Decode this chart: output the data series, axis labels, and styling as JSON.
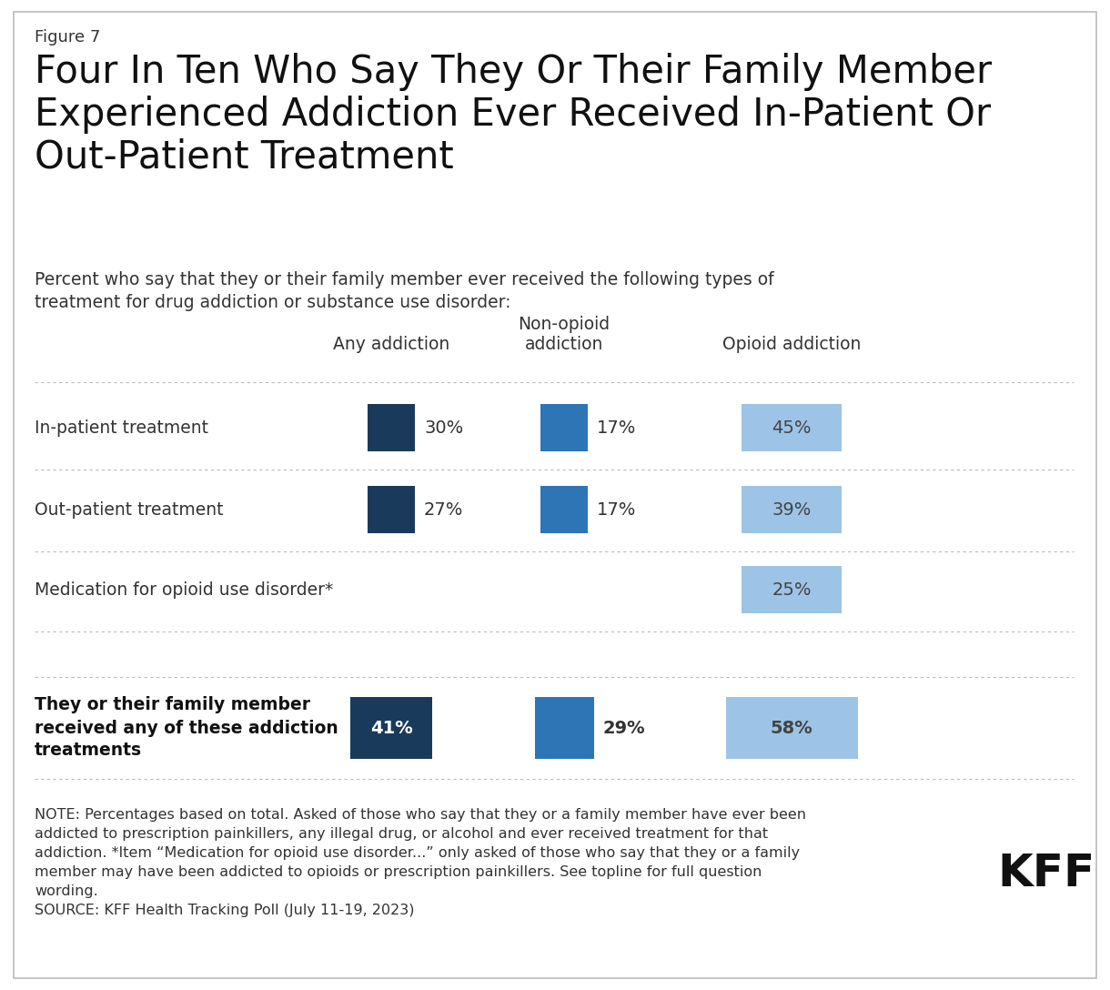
{
  "figure_label": "Figure 7",
  "title": "Four In Ten Who Say They Or Their Family Member\nExperienced Addiction Ever Received In-Patient Or\nOut-Patient Treatment",
  "subtitle": "Percent who say that they or their family member ever received the following types of\ntreatment for drug addiction or substance use disorder:",
  "col_headers": [
    "Any addiction",
    "Non-opioid\naddiction",
    "Opioid addiction"
  ],
  "rows": [
    {
      "label": "In-patient treatment",
      "values": [
        30,
        17,
        45
      ],
      "has_any": true,
      "has_nonopioid": true,
      "has_opioid": true
    },
    {
      "label": "Out-patient treatment",
      "values": [
        27,
        17,
        39
      ],
      "has_any": true,
      "has_nonopioid": true,
      "has_opioid": true
    },
    {
      "label": "Medication for opioid use disorder*",
      "values": [
        null,
        null,
        25
      ],
      "has_any": false,
      "has_nonopioid": false,
      "has_opioid": true
    }
  ],
  "summary_row": {
    "label": "They or their family member\nreceived any of these addiction\ntreatments",
    "values": [
      41,
      29,
      58
    ]
  },
  "color_any": "#1a3a5c",
  "color_nonopioid": "#2e75b6",
  "color_opioid": "#9dc3e6",
  "background_color": "#ffffff",
  "border_color": "#bbbbbb",
  "divider_color": "#bbbbbb",
  "text_color": "#333333",
  "label_fontsize": 13.5,
  "header_fontsize": 13.5,
  "title_fontsize": 30,
  "figure_label_fontsize": 13,
  "subtitle_fontsize": 13.5,
  "note_fontsize": 11.5,
  "value_fontsize": 14
}
